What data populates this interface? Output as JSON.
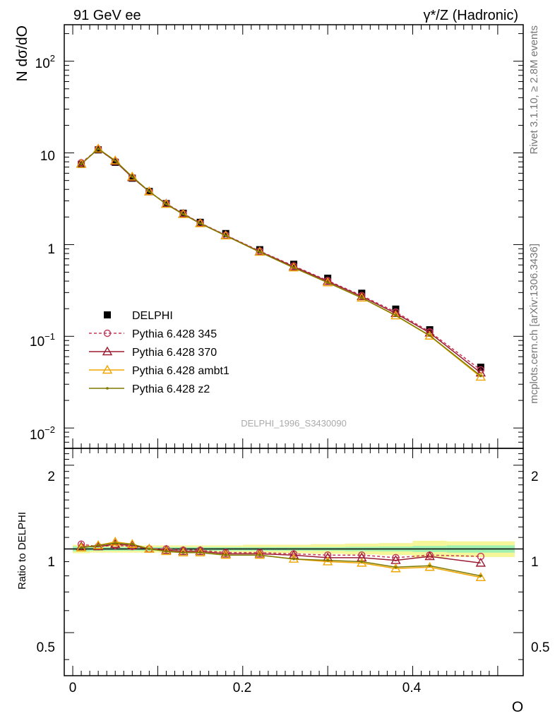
{
  "header": {
    "left": "91 GeV ee",
    "right": "γ*/Z (Hadronic)"
  },
  "side_labels": {
    "rivet": "Rivet 3.1.10, ≥ 2.8M events",
    "mcplots": "mcplots.cern.ch [arXiv:1306.3436]"
  },
  "watermark": "DELPHI_1996_S3430090",
  "axes": {
    "main_ylabel": "N dσ/dO",
    "ratio_ylabel": "Ratio to DELPHI",
    "xlabel": "O",
    "x_ticks": [
      "0",
      "0.2",
      "0.4"
    ],
    "main_y_ticks": [
      "10",
      "1"
    ],
    "main_y_ticks_exp": [
      {
        "base": "10",
        "exp": "2"
      },
      {
        "base": "10",
        "exp": "−1"
      },
      {
        "base": "10",
        "exp": "−2"
      }
    ],
    "ratio_y_ticks": [
      "2",
      "1",
      "0.5"
    ]
  },
  "legend": [
    {
      "label": "DELPHI",
      "color": "#000000",
      "marker": "square"
    },
    {
      "label": "Pythia 6.428 345",
      "color": "#c8385a",
      "marker": "circle",
      "dash": true
    },
    {
      "label": "Pythia 6.428 370",
      "color": "#9b1b30",
      "marker": "triangle"
    },
    {
      "label": "Pythia 6.428 ambt1",
      "color": "#f0a500",
      "marker": "triangle"
    },
    {
      "label": "Pythia 6.428 z2",
      "color": "#7d7a00",
      "marker": "dot"
    }
  ],
  "chart_data": {
    "type": "line",
    "x_range": [
      -0.01,
      0.53
    ],
    "main_y_range": [
      0.006,
      250
    ],
    "main_y_scale": "log",
    "ratio_y_range": [
      0.35,
      2.3
    ],
    "ratio_y_scale": "log",
    "x": [
      0.01,
      0.03,
      0.05,
      0.07,
      0.09,
      0.11,
      0.13,
      0.15,
      0.18,
      0.22,
      0.26,
      0.3,
      0.34,
      0.38,
      0.42,
      0.48
    ],
    "data_series": {
      "name": "DELPHI",
      "values": [
        7.5,
        10.8,
        7.9,
        5.3,
        3.8,
        2.8,
        2.2,
        1.75,
        1.32,
        0.88,
        0.61,
        0.43,
        0.295,
        0.198,
        0.118,
        0.046
      ]
    },
    "band_edges": [
      0.0,
      0.02,
      0.04,
      0.06,
      0.08,
      0.1,
      0.12,
      0.14,
      0.16,
      0.2,
      0.24,
      0.28,
      0.32,
      0.36,
      0.4,
      0.44,
      0.52
    ],
    "band_stat": [
      0.02,
      0.015,
      0.015,
      0.015,
      0.015,
      0.015,
      0.015,
      0.015,
      0.015,
      0.015,
      0.015,
      0.015,
      0.018,
      0.02,
      0.025,
      0.03
    ],
    "band_total": [
      0.035,
      0.03,
      0.03,
      0.03,
      0.03,
      0.03,
      0.03,
      0.03,
      0.03,
      0.035,
      0.035,
      0.04,
      0.045,
      0.05,
      0.07,
      0.065
    ],
    "mc_series": [
      {
        "name": "Pythia 6.428 345",
        "color": "#c8385a",
        "marker": "circle",
        "dash": true,
        "values": [
          7.8,
          11.0,
          8.1,
          5.4,
          3.78,
          2.8,
          2.18,
          1.72,
          1.27,
          0.85,
          0.585,
          0.405,
          0.278,
          0.184,
          0.112,
          0.043
        ],
        "ratio": [
          1.04,
          1.02,
          1.03,
          1.02,
          1.0,
          1.0,
          0.99,
          0.99,
          0.97,
          0.97,
          0.96,
          0.95,
          0.95,
          0.93,
          0.95,
          0.94
        ]
      },
      {
        "name": "Pythia 6.428 370",
        "color": "#9b1b30",
        "marker": "triangle",
        "dash": false,
        "values": [
          7.6,
          11.0,
          8.1,
          5.4,
          3.78,
          2.78,
          2.16,
          1.71,
          1.26,
          0.84,
          0.575,
          0.398,
          0.272,
          0.178,
          0.109,
          0.04
        ],
        "ratio": [
          1.02,
          1.02,
          1.04,
          1.03,
          1.0,
          0.99,
          0.98,
          0.98,
          0.96,
          0.96,
          0.95,
          0.93,
          0.93,
          0.91,
          0.94,
          0.89
        ]
      },
      {
        "name": "Pythia 6.428 ambt1",
        "color": "#f0a500",
        "marker": "triangle",
        "dash": false,
        "values": [
          7.55,
          11.1,
          8.25,
          5.5,
          3.8,
          2.76,
          2.14,
          1.7,
          1.25,
          0.83,
          0.56,
          0.385,
          0.262,
          0.168,
          0.101,
          0.036
        ],
        "ratio": [
          1.01,
          1.03,
          1.06,
          1.04,
          1.0,
          0.98,
          0.97,
          0.97,
          0.95,
          0.95,
          0.92,
          0.9,
          0.89,
          0.85,
          0.86,
          0.79
        ]
      },
      {
        "name": "Pythia 6.428 z2",
        "color": "#7d7a00",
        "marker": "dot",
        "dash": false,
        "values": [
          7.55,
          11.1,
          8.2,
          5.5,
          3.8,
          2.76,
          2.14,
          1.7,
          1.25,
          0.83,
          0.56,
          0.386,
          0.263,
          0.169,
          0.102,
          0.037
        ],
        "ratio": [
          1.01,
          1.03,
          1.05,
          1.04,
          1.0,
          0.98,
          0.97,
          0.97,
          0.95,
          0.95,
          0.92,
          0.91,
          0.9,
          0.86,
          0.87,
          0.8
        ]
      }
    ]
  }
}
